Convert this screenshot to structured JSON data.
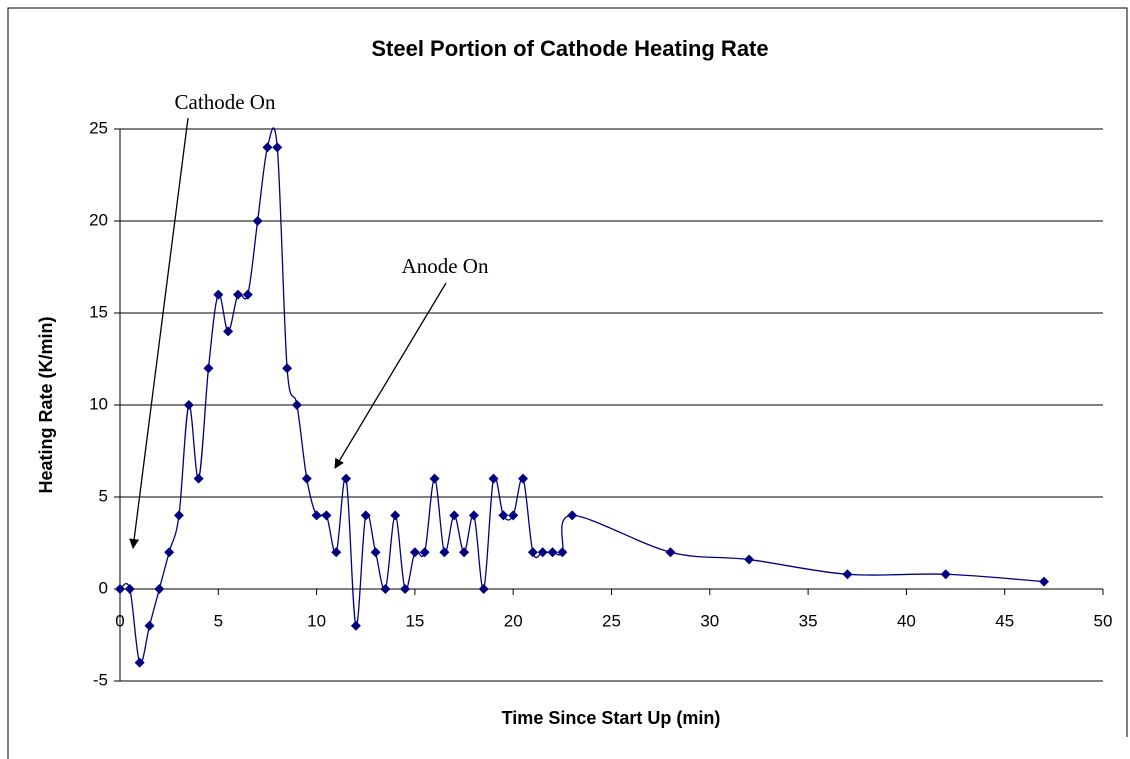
{
  "chart_data": {
    "type": "line",
    "title": "Steel Portion of Cathode Heating Rate",
    "x_label": "Time Since Start Up (min)",
    "y_label": "Heating Rate (K/min)",
    "annotations": [
      "Cathode On",
      "Anode On"
    ],
    "x": [
      0,
      0.5,
      1,
      1.5,
      2,
      2.5,
      3,
      3.5,
      4,
      4.5,
      5,
      5.5,
      6,
      6.5,
      7,
      7.5,
      8,
      8.5,
      9,
      9.5,
      10,
      10.5,
      11,
      11.5,
      12,
      12.5,
      13,
      13.5,
      14,
      14.5,
      15,
      15.5,
      16,
      16.5,
      17,
      17.5,
      18,
      18.5,
      19,
      19.5,
      20,
      20.5,
      21,
      21.5,
      22,
      22.5,
      23,
      28,
      32,
      37,
      42,
      47
    ],
    "series": [
      {
        "name": "Heating Rate",
        "color": "#000080",
        "values": [
          0,
          0,
          -4,
          -2,
          0,
          2,
          4,
          10,
          6,
          12,
          16,
          14,
          16,
          16,
          20,
          24,
          24,
          12,
          10,
          6,
          4,
          4,
          2,
          6,
          -2,
          4,
          2,
          0,
          4,
          0,
          2,
          2,
          6,
          2,
          4,
          2,
          4,
          0,
          6,
          4,
          4,
          6,
          2,
          2,
          2,
          2,
          4,
          2,
          1.6,
          0.8,
          0.8,
          0.4
        ]
      }
    ],
    "xlim": [
      0,
      50
    ],
    "xticks": [
      0,
      5,
      10,
      15,
      20,
      25,
      30,
      35,
      40,
      45,
      50
    ],
    "ylim": [
      -5,
      25
    ],
    "yticks": [
      -5,
      0,
      5,
      10,
      15,
      20,
      25
    ],
    "grid": true,
    "markers": true
  }
}
